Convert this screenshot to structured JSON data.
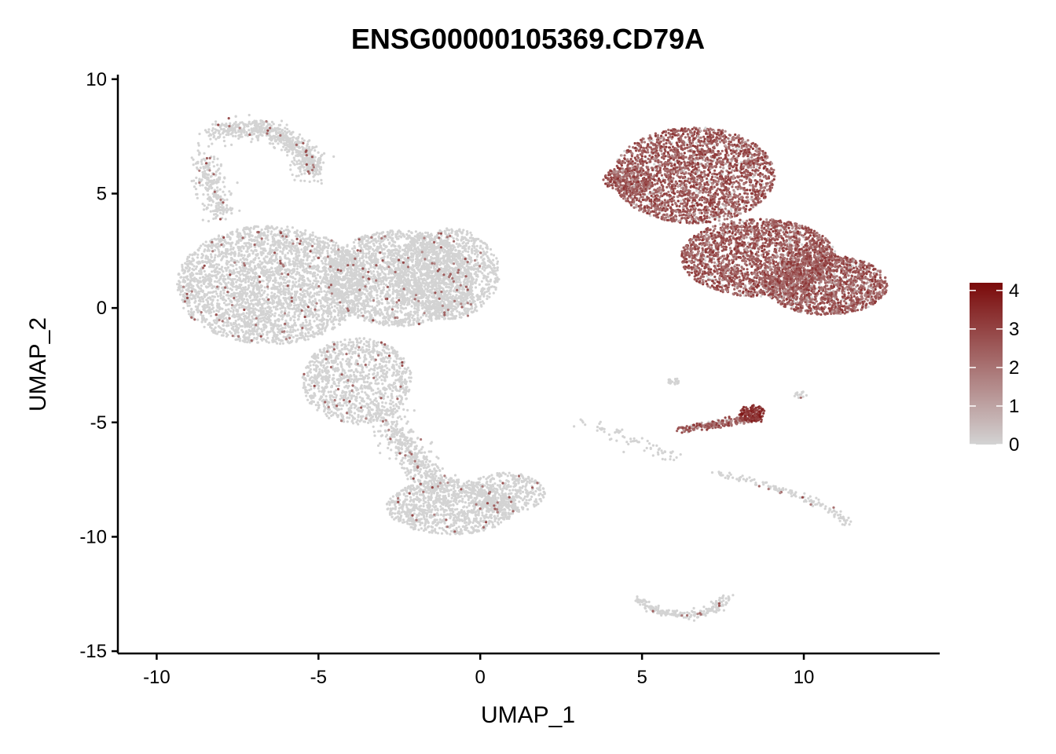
{
  "chart_data": {
    "type": "scatter",
    "title": "ENSG00000105369.CD79A",
    "xlabel": "UMAP_1",
    "ylabel": "UMAP_2",
    "xlim": [
      -11.2,
      14.2
    ],
    "ylim": [
      -15.1,
      10.2
    ],
    "x_ticks": [
      -10,
      -5,
      0,
      5,
      10
    ],
    "x_tick_labels": [
      "-10",
      "-5",
      "0",
      "5",
      "10"
    ],
    "y_ticks": [
      10,
      5,
      0,
      -5,
      -10,
      -15
    ],
    "y_tick_labels": [
      "10",
      "5",
      "0",
      "-5",
      "-10",
      "-15"
    ],
    "grid": false,
    "color_scale": {
      "low_color": "#d3d3d3",
      "high_color": "#7a0a0a",
      "range": [
        0,
        4.2
      ],
      "ticks": [
        0,
        1,
        2,
        3,
        4
      ],
      "tick_labels": [
        "0",
        "1",
        "2",
        "3",
        "4"
      ],
      "legend_position": "right"
    },
    "clusters": [
      {
        "region": "top-left arm",
        "shape": "band",
        "points": [
          [
            -8.3,
            7.6
          ],
          [
            -7.2,
            7.9
          ],
          [
            -6.2,
            7.6
          ],
          [
            -5.6,
            7.0
          ],
          [
            -5.2,
            6.4
          ],
          [
            -5.3,
            5.9
          ]
        ],
        "spread": 0.45,
        "count": 700,
        "expr": "low"
      },
      {
        "region": "left stem",
        "shape": "band",
        "points": [
          [
            -8.6,
            6.6
          ],
          [
            -8.3,
            5.2
          ],
          [
            -8.0,
            4.0
          ]
        ],
        "spread": 0.45,
        "count": 250,
        "expr": "low"
      },
      {
        "region": "main left body",
        "shape": "ellipse",
        "center": [
          -6.5,
          1.0
        ],
        "radius": [
          2.9,
          2.6
        ],
        "count": 3200,
        "expr": "low"
      },
      {
        "region": "main center body",
        "shape": "ellipse",
        "center": [
          -2.5,
          1.3
        ],
        "radius": [
          2.3,
          2.1
        ],
        "count": 2200,
        "expr": "low"
      },
      {
        "region": "main right body",
        "shape": "ellipse",
        "center": [
          -1.0,
          1.5
        ],
        "radius": [
          1.6,
          2.0
        ],
        "count": 1200,
        "expr": "low"
      },
      {
        "region": "lower stem",
        "shape": "ellipse",
        "center": [
          -3.8,
          -3.2
        ],
        "radius": [
          1.7,
          1.9
        ],
        "count": 1100,
        "expr": "low"
      },
      {
        "region": "lower band",
        "shape": "band",
        "points": [
          [
            -3.2,
            -4.5
          ],
          [
            -2.4,
            -5.8
          ],
          [
            -1.8,
            -7.0
          ],
          [
            -1.2,
            -8.0
          ]
        ],
        "spread": 0.55,
        "count": 500,
        "expr": "low"
      },
      {
        "region": "bottom blob",
        "shape": "ellipse",
        "center": [
          -0.9,
          -8.7
        ],
        "radius": [
          2.0,
          1.2
        ],
        "count": 1100,
        "expr": "low"
      },
      {
        "region": "bottom blob right",
        "shape": "ellipse",
        "center": [
          0.8,
          -8.1
        ],
        "radius": [
          1.2,
          0.9
        ],
        "count": 400,
        "expr": "low"
      },
      {
        "region": "B-cell cluster top",
        "shape": "ellipse",
        "center": [
          6.6,
          5.8
        ],
        "radius": [
          2.5,
          2.1
        ],
        "count": 2600,
        "expr": "high"
      },
      {
        "region": "B-cell cluster middle",
        "shape": "ellipse",
        "center": [
          8.6,
          2.2
        ],
        "radius": [
          2.4,
          1.7
        ],
        "count": 2300,
        "expr": "high"
      },
      {
        "region": "B-cell cluster right",
        "shape": "ellipse",
        "center": [
          10.7,
          1.0
        ],
        "radius": [
          1.9,
          1.3
        ],
        "count": 1500,
        "expr": "high"
      },
      {
        "region": "B-cell cluster left tip",
        "shape": "ellipse",
        "center": [
          4.6,
          5.6
        ],
        "radius": [
          0.8,
          0.6
        ],
        "count": 250,
        "expr": "high"
      },
      {
        "region": "plasma streak",
        "shape": "band",
        "points": [
          [
            6.2,
            -5.3
          ],
          [
            7.2,
            -5.1
          ],
          [
            8.0,
            -4.9
          ],
          [
            8.6,
            -4.8
          ]
        ],
        "spread": 0.15,
        "count": 260,
        "expr": "high"
      },
      {
        "region": "plasma streak head",
        "shape": "ellipse",
        "center": [
          8.4,
          -4.6
        ],
        "radius": [
          0.4,
          0.35
        ],
        "count": 120,
        "expr": "veryhigh"
      },
      {
        "region": "right scatter streak",
        "shape": "band",
        "points": [
          [
            7.2,
            -7.2
          ],
          [
            8.5,
            -7.6
          ],
          [
            9.8,
            -8.2
          ],
          [
            10.8,
            -8.8
          ],
          [
            11.4,
            -9.4
          ]
        ],
        "spread": 0.18,
        "count": 140,
        "expr": "low"
      },
      {
        "region": "mid scatter",
        "shape": "band",
        "points": [
          [
            3.0,
            -5.0
          ],
          [
            4.2,
            -5.5
          ],
          [
            5.3,
            -6.1
          ],
          [
            6.0,
            -6.6
          ]
        ],
        "spread": 0.3,
        "count": 70,
        "expr": "low"
      },
      {
        "region": "bottom arc",
        "shape": "band",
        "points": [
          [
            4.8,
            -12.7
          ],
          [
            5.5,
            -13.3
          ],
          [
            6.4,
            -13.5
          ],
          [
            7.2,
            -13.2
          ],
          [
            7.6,
            -12.7
          ]
        ],
        "spread": 0.18,
        "count": 220,
        "expr": "low"
      },
      {
        "region": "small islet",
        "shape": "ellipse",
        "center": [
          6.0,
          -3.2
        ],
        "radius": [
          0.2,
          0.15
        ],
        "count": 20,
        "expr": "low"
      },
      {
        "region": "small islet right",
        "shape": "ellipse",
        "center": [
          9.9,
          -3.8
        ],
        "radius": [
          0.2,
          0.15
        ],
        "count": 15,
        "expr": "low"
      }
    ]
  }
}
